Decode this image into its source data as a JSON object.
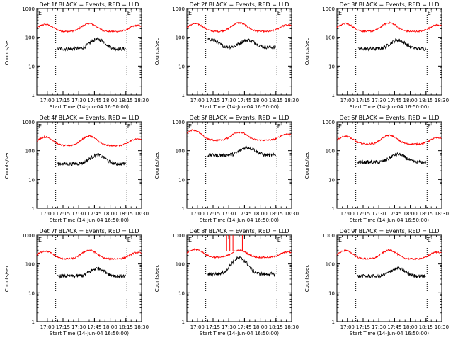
{
  "chart_data": [
    {
      "type": "line",
      "title": "Det 1f BLACK = Events, RED = LLD",
      "ylabel": "Counts/sec",
      "xlabel": "Start Time (14-Jun-04 16:50:00)",
      "xticks": [
        "17:00",
        "17:15",
        "17:30",
        "17:45",
        "18:00",
        "18:15",
        "18:30"
      ],
      "yticks": [
        "1",
        "10",
        "100",
        "1000"
      ],
      "ylim": [
        1,
        1000
      ],
      "xlim_min": [
        0,
        100
      ],
      "event_markers": [
        {
          "label": "E",
          "t": 0
        },
        {
          "label": "E'",
          "t": 85
        }
      ],
      "dotted_lines_min": [
        18,
        86
      ],
      "series": [
        {
          "name": "LLD",
          "color": "#ff0000",
          "t_range": [
            0,
            100
          ],
          "base": 160,
          "peaks": [
            {
              "t": 8,
              "v": 280
            },
            {
              "t": 50,
              "v": 300
            },
            {
              "t": 96,
              "v": 260
            }
          ]
        },
        {
          "name": "Events",
          "color": "#000000",
          "t_range": [
            20,
            85
          ],
          "base": 40,
          "peaks": [
            {
              "t": 58,
              "v": 85
            }
          ]
        }
      ]
    },
    {
      "type": "line",
      "title": "Det 2f BLACK = Events, RED = LLD",
      "ylabel": "Counts/sec",
      "xlabel": "Start Time (14-Jun-04 16:50:00)",
      "xticks": [
        "17:00",
        "17:15",
        "17:30",
        "17:45",
        "18:00",
        "18:15",
        "18:30"
      ],
      "yticks": [
        "1",
        "10",
        "100",
        "1000"
      ],
      "ylim": [
        1,
        1000
      ],
      "xlim_min": [
        0,
        100
      ],
      "event_markers": [
        {
          "label": "E",
          "t": 0
        },
        {
          "label": "E'",
          "t": 85
        }
      ],
      "dotted_lines_min": [
        18,
        86
      ],
      "series": [
        {
          "name": "LLD",
          "color": "#ff0000",
          "t_range": [
            0,
            100
          ],
          "base": 160,
          "peaks": [
            {
              "t": 8,
              "v": 300
            },
            {
              "t": 50,
              "v": 320
            },
            {
              "t": 96,
              "v": 270
            }
          ]
        },
        {
          "name": "Events",
          "color": "#000000",
          "t_range": [
            20,
            85
          ],
          "base": 45,
          "peaks": [
            {
              "t": 22,
              "v": 85
            },
            {
              "t": 58,
              "v": 80
            }
          ]
        }
      ]
    },
    {
      "type": "line",
      "title": "Det 3f BLACK = Events, RED = LLD",
      "ylabel": "Counts/sec",
      "xlabel": "Start Time (14-Jun-04 16:50:00)",
      "xticks": [
        "17:00",
        "17:15",
        "17:30",
        "17:45",
        "18:00",
        "18:15",
        "18:30"
      ],
      "yticks": [
        "1",
        "10",
        "100",
        "1000"
      ],
      "ylim": [
        1,
        1000
      ],
      "xlim_min": [
        0,
        100
      ],
      "event_markers": [
        {
          "label": "E",
          "t": 0
        },
        {
          "label": "E'",
          "t": 85
        }
      ],
      "dotted_lines_min": [
        18,
        86
      ],
      "series": [
        {
          "name": "LLD",
          "color": "#ff0000",
          "t_range": [
            0,
            100
          ],
          "base": 160,
          "peaks": [
            {
              "t": 8,
              "v": 300
            },
            {
              "t": 50,
              "v": 320
            },
            {
              "t": 96,
              "v": 270
            }
          ]
        },
        {
          "name": "Events",
          "color": "#000000",
          "t_range": [
            20,
            85
          ],
          "base": 40,
          "peaks": [
            {
              "t": 58,
              "v": 80
            }
          ]
        }
      ]
    },
    {
      "type": "line",
      "title": "Det 4f BLACK = Events, RED = LLD",
      "ylabel": "Counts/sec",
      "xlabel": "Start Time (14-Jun-04 16:50:00)",
      "xticks": [
        "17:00",
        "17:15",
        "17:30",
        "17:45",
        "18:00",
        "18:15",
        "18:30"
      ],
      "yticks": [
        "1",
        "10",
        "100",
        "1000"
      ],
      "ylim": [
        1,
        1000
      ],
      "xlim_min": [
        0,
        100
      ],
      "event_markers": [
        {
          "label": "E",
          "t": 0
        },
        {
          "label": "E'",
          "t": 85
        }
      ],
      "dotted_lines_min": [
        18,
        86
      ],
      "series": [
        {
          "name": "LLD",
          "color": "#ff0000",
          "t_range": [
            0,
            100
          ],
          "base": 150,
          "peaks": [
            {
              "t": 8,
              "v": 300
            },
            {
              "t": 50,
              "v": 320
            },
            {
              "t": 96,
              "v": 260
            }
          ]
        },
        {
          "name": "Events",
          "color": "#000000",
          "t_range": [
            20,
            85
          ],
          "base": 35,
          "peaks": [
            {
              "t": 58,
              "v": 70
            }
          ]
        }
      ]
    },
    {
      "type": "line",
      "title": "Det 5f BLACK = Events, RED = LLD",
      "ylabel": "Counts/sec",
      "xlabel": "Start Time (14-Jun-04 16:50:00)",
      "xticks": [
        "17:00",
        "17:15",
        "17:30",
        "17:45",
        "18:00",
        "18:15",
        "18:30"
      ],
      "yticks": [
        "1",
        "10",
        "100",
        "1000"
      ],
      "ylim": [
        1,
        1000
      ],
      "xlim_min": [
        0,
        100
      ],
      "event_markers": [
        {
          "label": "E",
          "t": 0
        },
        {
          "label": "E'",
          "t": 85
        }
      ],
      "dotted_lines_min": [
        18,
        86
      ],
      "series": [
        {
          "name": "LLD",
          "color": "#ff0000",
          "t_range": [
            0,
            100
          ],
          "base": 230,
          "peaks": [
            {
              "t": 6,
              "v": 520
            },
            {
              "t": 50,
              "v": 440
            },
            {
              "t": 96,
              "v": 380
            }
          ]
        },
        {
          "name": "Events",
          "color": "#000000",
          "t_range": [
            20,
            85
          ],
          "base": 70,
          "peaks": [
            {
              "t": 58,
              "v": 130
            }
          ]
        }
      ]
    },
    {
      "type": "line",
      "title": "Det 6f BLACK = Events, RED = LLD",
      "ylabel": "Counts/sec",
      "xlabel": "Start Time (14-Jun-04 16:50:00)",
      "xticks": [
        "17:00",
        "17:15",
        "17:30",
        "17:45",
        "18:00",
        "18:15",
        "18:30"
      ],
      "yticks": [
        "1",
        "10",
        "100",
        "1000"
      ],
      "ylim": [
        1,
        1000
      ],
      "xlim_min": [
        0,
        100
      ],
      "event_markers": [
        {
          "label": "E",
          "t": 0
        },
        {
          "label": "E'",
          "t": 85
        }
      ],
      "dotted_lines_min": [
        18,
        86
      ],
      "series": [
        {
          "name": "LLD",
          "color": "#ff0000",
          "t_range": [
            0,
            100
          ],
          "base": 170,
          "peaks": [
            {
              "t": 8,
              "v": 320
            },
            {
              "t": 50,
              "v": 340
            },
            {
              "t": 96,
              "v": 280
            }
          ]
        },
        {
          "name": "Events",
          "color": "#000000",
          "t_range": [
            20,
            85
          ],
          "base": 40,
          "peaks": [
            {
              "t": 58,
              "v": 75
            }
          ]
        }
      ]
    },
    {
      "type": "line",
      "title": "Det 7f BLACK = Events, RED = LLD",
      "ylabel": "Counts/sec",
      "xlabel": "Start Time (14-Jun-04 16:50:00)",
      "xticks": [
        "17:00",
        "17:15",
        "17:30",
        "17:45",
        "18:00",
        "18:15",
        "18:30"
      ],
      "yticks": [
        "1",
        "10",
        "100",
        "1000"
      ],
      "ylim": [
        1,
        1000
      ],
      "xlim_min": [
        0,
        100
      ],
      "event_markers": [
        {
          "label": "E",
          "t": 0
        },
        {
          "label": "E'",
          "t": 85
        }
      ],
      "dotted_lines_min": [
        18,
        86
      ],
      "series": [
        {
          "name": "LLD",
          "color": "#ff0000",
          "t_range": [
            0,
            100
          ],
          "base": 150,
          "peaks": [
            {
              "t": 8,
              "v": 280
            },
            {
              "t": 50,
              "v": 300
            },
            {
              "t": 96,
              "v": 250
            }
          ]
        },
        {
          "name": "Events",
          "color": "#000000",
          "t_range": [
            20,
            85
          ],
          "base": 38,
          "peaks": [
            {
              "t": 58,
              "v": 70
            }
          ]
        }
      ]
    },
    {
      "type": "line",
      "title": "Det 8f BLACK = Events, RED = LLD",
      "ylabel": "Counts/sec",
      "xlabel": "Start Time (14-Jun-04 16:50:00)",
      "xticks": [
        "17:00",
        "17:15",
        "17:30",
        "17:45",
        "18:00",
        "18:15",
        "18:30"
      ],
      "yticks": [
        "1",
        "10",
        "100",
        "1000"
      ],
      "ylim": [
        1,
        1000
      ],
      "xlim_min": [
        0,
        100
      ],
      "event_markers": [
        {
          "label": "E",
          "t": 0
        },
        {
          "label": "E'",
          "t": 85
        }
      ],
      "dotted_lines_min": [
        18,
        86
      ],
      "series": [
        {
          "name": "LLD",
          "color": "#ff0000",
          "t_range": [
            0,
            100
          ],
          "base": 170,
          "peaks": [
            {
              "t": 8,
              "v": 320
            },
            {
              "t": 50,
              "v": 300
            },
            {
              "t": 96,
              "v": 260
            }
          ],
          "spikes": [
            {
              "t": 38,
              "v": 1000
            },
            {
              "t": 41,
              "v": 1000
            },
            {
              "t": 44,
              "v": 1000
            },
            {
              "t": 53,
              "v": 1000
            }
          ]
        },
        {
          "name": "Events",
          "color": "#000000",
          "t_range": [
            20,
            85
          ],
          "base": 45,
          "peaks": [
            {
              "t": 50,
              "v": 160
            }
          ]
        }
      ]
    },
    {
      "type": "line",
      "title": "Det 9f BLACK = Events, RED = LLD",
      "ylabel": "Counts/sec",
      "xlabel": "Start Time (14-Jun-04 16:50:00)",
      "xticks": [
        "17:00",
        "17:15",
        "17:30",
        "17:45",
        "18:00",
        "18:15",
        "18:30"
      ],
      "yticks": [
        "1",
        "10",
        "100",
        "1000"
      ],
      "ylim": [
        1,
        1000
      ],
      "xlim_min": [
        0,
        100
      ],
      "event_markers": [
        {
          "label": "E",
          "t": 0
        },
        {
          "label": "E'",
          "t": 85
        }
      ],
      "dotted_lines_min": [
        18,
        86
      ],
      "series": [
        {
          "name": "LLD",
          "color": "#ff0000",
          "t_range": [
            0,
            100
          ],
          "base": 150,
          "peaks": [
            {
              "t": 8,
              "v": 290
            },
            {
              "t": 50,
              "v": 300
            },
            {
              "t": 96,
              "v": 260
            }
          ]
        },
        {
          "name": "Events",
          "color": "#000000",
          "t_range": [
            20,
            85
          ],
          "base": 38,
          "peaks": [
            {
              "t": 58,
              "v": 70
            }
          ]
        }
      ]
    }
  ]
}
